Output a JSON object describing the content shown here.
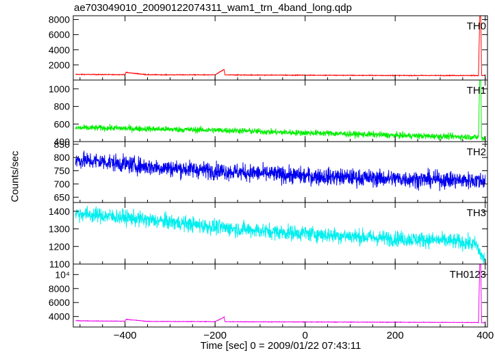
{
  "chart_data": {
    "type": "line",
    "title": "ae703049010_20090122074311_wam1_trn_4band_long.qdp",
    "xlabel": "Time [sec] 0 = 2009/01/22 07:43:11",
    "ylabel": "Counts/sec",
    "xlim": [
      -515,
      405
    ],
    "x_ticks": [
      {
        "value": -400,
        "label": "−400"
      },
      {
        "value": -200,
        "label": "−200"
      },
      {
        "value": 0,
        "label": "0"
      },
      {
        "value": 200,
        "label": "200"
      },
      {
        "value": 400,
        "label": "400"
      }
    ],
    "panels": [
      {
        "name": "TH0",
        "color": "#ff0000",
        "ylim": [
          0,
          8500
        ],
        "yticks": [
          2000,
          4000,
          6000,
          8000
        ],
        "ytick_labels": [
          "2000",
          "4000",
          "6000",
          "8000"
        ],
        "x": [
          -510,
          -450,
          -400,
          -398,
          -350,
          -300,
          -250,
          -200,
          -180,
          -178,
          -150,
          -100,
          -50,
          0,
          50,
          100,
          150,
          200,
          250,
          300,
          350,
          385,
          388,
          390,
          392,
          400
        ],
        "y": [
          750,
          720,
          720,
          1000,
          700,
          690,
          690,
          680,
          1400,
          680,
          670,
          660,
          650,
          640,
          630,
          620,
          610,
          600,
          600,
          600,
          600,
          600,
          8600,
          8600,
          600,
          600
        ]
      },
      {
        "name": "TH1",
        "color": "#00ee00",
        "ylim": [
          400,
          1100
        ],
        "yticks": [
          400,
          600,
          800,
          1000
        ],
        "ytick_labels": [
          "400",
          "600",
          "800",
          "1000"
        ],
        "x": [
          -510,
          -450,
          -400,
          -350,
          -300,
          -250,
          -200,
          -150,
          -100,
          -50,
          0,
          50,
          100,
          150,
          200,
          250,
          300,
          350,
          385,
          388,
          390,
          392,
          400
        ],
        "y": [
          555,
          555,
          550,
          545,
          540,
          535,
          530,
          525,
          515,
          505,
          500,
          495,
          485,
          480,
          470,
          465,
          460,
          455,
          450,
          1150,
          1150,
          440,
          440
        ]
      },
      {
        "name": "TH2",
        "color": "#0000ee",
        "ylim": [
          630,
          860
        ],
        "yticks": [
          650,
          700,
          750,
          800,
          850
        ],
        "ytick_labels": [
          "650",
          "700",
          "750",
          "800",
          "850"
        ],
        "x": [
          -510,
          -450,
          -400,
          -350,
          -300,
          -250,
          -200,
          -150,
          -100,
          -50,
          0,
          50,
          100,
          150,
          200,
          250,
          300,
          350,
          400
        ],
        "y": [
          790,
          785,
          775,
          765,
          760,
          755,
          750,
          745,
          740,
          735,
          730,
          728,
          725,
          722,
          720,
          718,
          716,
          714,
          712
        ]
      },
      {
        "name": "TH3",
        "color": "#00eeee",
        "ylim": [
          1100,
          1450
        ],
        "yticks": [
          1100,
          1200,
          1300,
          1400
        ],
        "ytick_labels": [
          "1100",
          "1200",
          "1300",
          "1400"
        ],
        "x": [
          -510,
          -450,
          -400,
          -350,
          -300,
          -250,
          -200,
          -150,
          -100,
          -50,
          0,
          50,
          100,
          150,
          200,
          250,
          300,
          350,
          380,
          395
        ],
        "y": [
          1390,
          1375,
          1365,
          1350,
          1340,
          1325,
          1310,
          1300,
          1290,
          1280,
          1275,
          1265,
          1260,
          1250,
          1245,
          1240,
          1235,
          1225,
          1210,
          1130
        ]
      },
      {
        "name": "TH0123",
        "color": "#ee00ee",
        "ylim": [
          2500,
          11500
        ],
        "yticks": [
          4000,
          6000,
          8000,
          10000
        ],
        "ytick_labels": [
          "4000",
          "6000",
          "8000",
          "10⁴"
        ],
        "x": [
          -510,
          -450,
          -400,
          -398,
          -350,
          -300,
          -250,
          -200,
          -180,
          -178,
          -150,
          -100,
          -50,
          0,
          50,
          100,
          150,
          200,
          250,
          300,
          350,
          385,
          388,
          390,
          392,
          400
        ],
        "y": [
          3400,
          3350,
          3330,
          3600,
          3300,
          3290,
          3280,
          3270,
          3900,
          3260,
          3250,
          3240,
          3230,
          3220,
          3210,
          3200,
          3190,
          3180,
          3170,
          3160,
          3150,
          3140,
          11600,
          11600,
          3100,
          3100
        ]
      }
    ]
  }
}
